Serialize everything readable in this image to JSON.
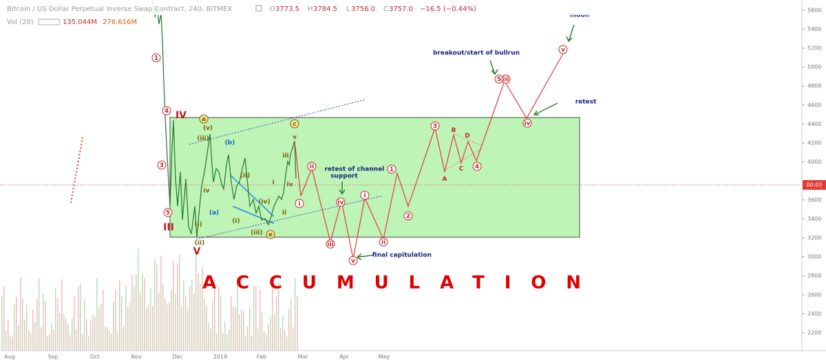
{
  "header": {
    "symbol": "Bitcoin / US Dollar Perpetual Inverse Swap Contract, 240, BITMEX",
    "o_label": "O",
    "o": "3773.5",
    "h_label": "H",
    "h": "3784.5",
    "l_label": "L",
    "l": "3756.0",
    "c_label": "C",
    "c": "3757.0",
    "change": "−16.5 (−0.44%)"
  },
  "volume": {
    "label": "Vol (20)",
    "v1": "135.044M",
    "v2": "276.616M"
  },
  "price_axis": {
    "ticks": [
      2200,
      2400,
      2600,
      2800,
      3000,
      3200,
      3400,
      3600,
      4000,
      4200,
      4400,
      4600,
      4800,
      5000,
      5200,
      5400,
      5600
    ],
    "tag": "00:03"
  },
  "time_axis": {
    "labels": [
      "Aug",
      "Sep",
      "Oct",
      "Nov",
      "Dec",
      "2019",
      "Feb",
      "Mar",
      "Apr",
      "May"
    ]
  },
  "annotations": {
    "moon": "moon",
    "breakout": "breakout/start of bullrun",
    "retest": "retest",
    "retest_support_1": "retest of channel",
    "retest_support_2": "support",
    "final": "final capitulation",
    "accumulation": "ACCUMULATION",
    "wave_iv": "IV",
    "wave_iii": "III",
    "wave_v": "V"
  },
  "waves": [
    "1",
    "4",
    "3",
    "5",
    "a",
    "(v)",
    "(iii)",
    "(b)",
    "(ii)",
    "(iv)",
    "(i)",
    "(iii)",
    "(a)",
    "(i)",
    "(ii)",
    "c",
    "e",
    "v",
    "iii",
    "iv",
    "i",
    "ii",
    "iv",
    "ii",
    "i",
    "iii",
    "iv",
    "v",
    "i",
    "ii",
    "1",
    "2",
    "3",
    "A",
    "B",
    "C",
    "D",
    "4",
    "5",
    "iii",
    "iv",
    "v"
  ]
}
